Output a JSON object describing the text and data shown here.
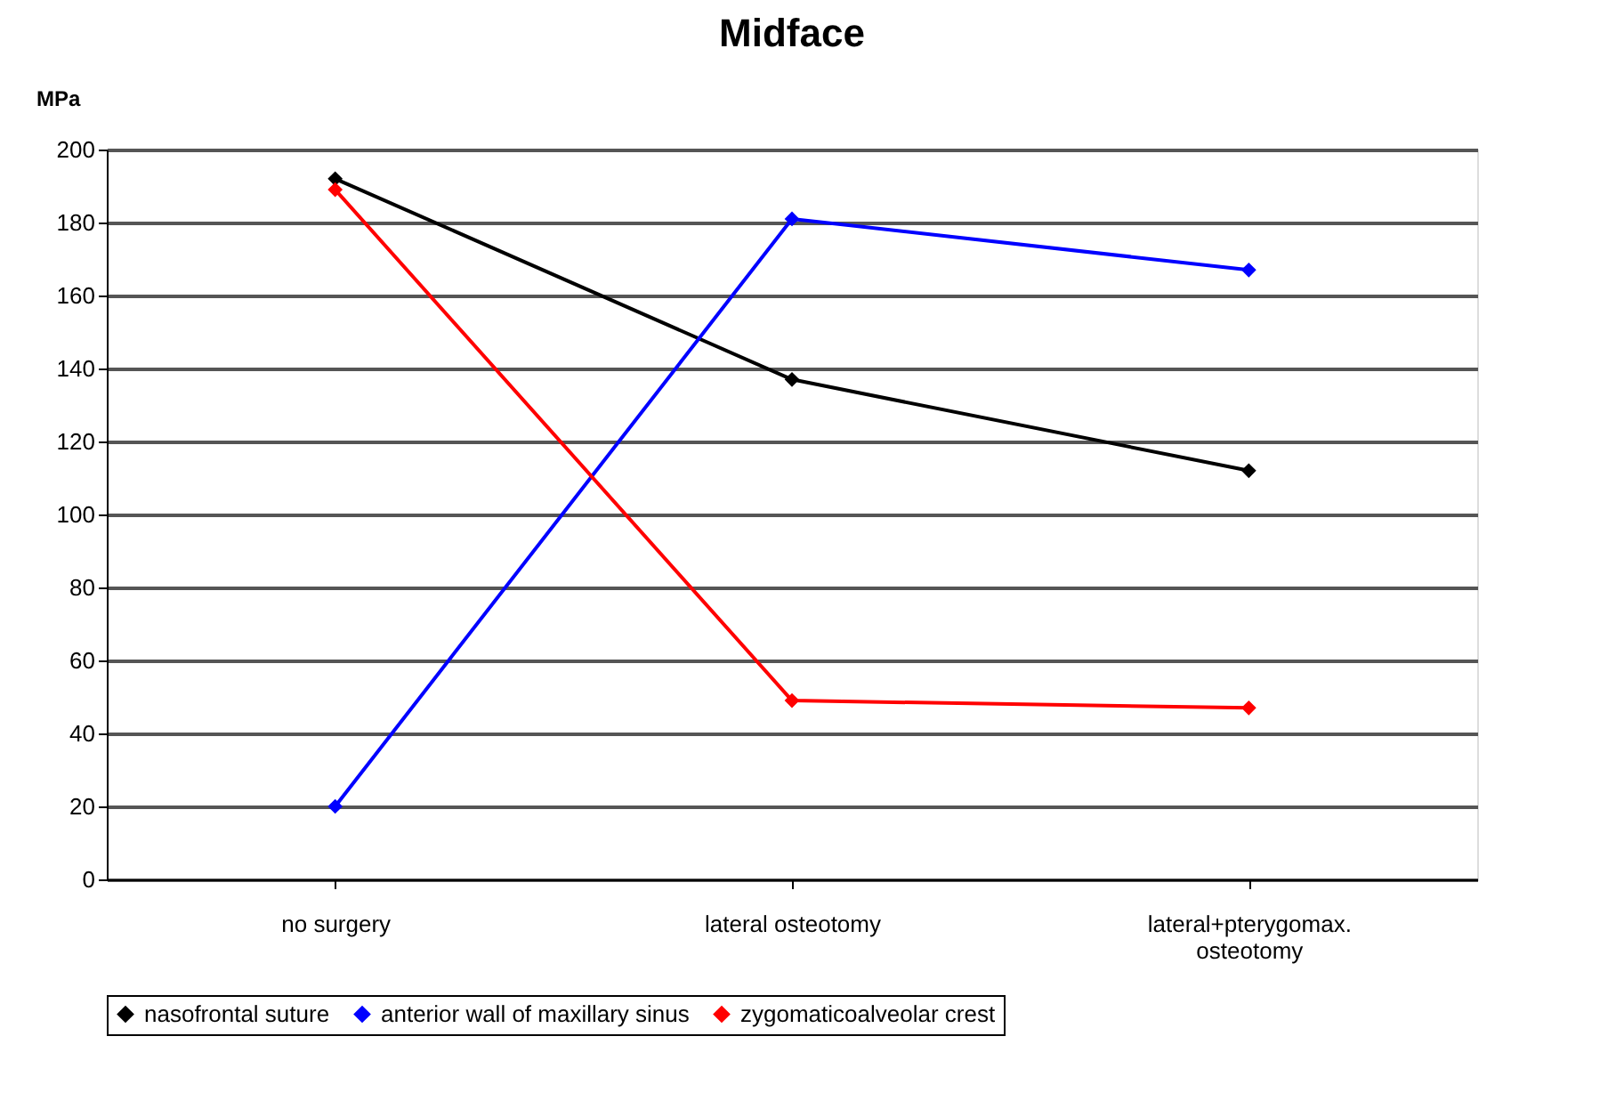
{
  "chart_data": {
    "type": "line",
    "title": "Midface",
    "ylabel": "MPa",
    "categories": [
      "no surgery",
      "lateral osteotomy",
      "lateral+pterygomax. osteotomy"
    ],
    "series": [
      {
        "name": "nasofrontal suture",
        "color": "#000000",
        "values": [
          192,
          137,
          112
        ]
      },
      {
        "name": "anterior wall of maxillary sinus",
        "color": "#0000ff",
        "values": [
          20,
          181,
          167
        ]
      },
      {
        "name": "zygomaticoalveolar crest",
        "color": "#ff0000",
        "values": [
          189,
          49,
          47
        ]
      }
    ],
    "ylim": [
      0,
      200
    ],
    "yticks": [
      0,
      20,
      40,
      60,
      80,
      100,
      120,
      140,
      160,
      180,
      200
    ],
    "grid": "y",
    "legend": "bottom",
    "marker": "diamond",
    "line_style": "solid"
  }
}
